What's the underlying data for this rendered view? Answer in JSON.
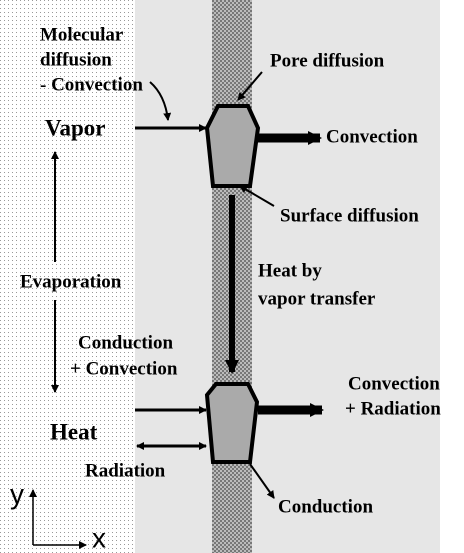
{
  "labels": {
    "molecular_diffusion": [
      "Molecular",
      "diffusion",
      "- Convection"
    ],
    "vapor": "Vapor",
    "pore_diffusion": "Pore diffusion",
    "vapor_convection": "Convection",
    "surface_diffusion": "Surface diffusion",
    "evaporation": "Evaporation",
    "heat_by_vapor": [
      "Heat by",
      "vapor transfer"
    ],
    "conduction_convection": [
      "Conduction",
      "+ Convection"
    ],
    "convection_radiation": [
      "Convection",
      "+ Radiation"
    ],
    "heat": "Heat",
    "radiation": "Radiation",
    "conduction": "Conduction",
    "axis_y": "y",
    "axis_x": "x"
  }
}
